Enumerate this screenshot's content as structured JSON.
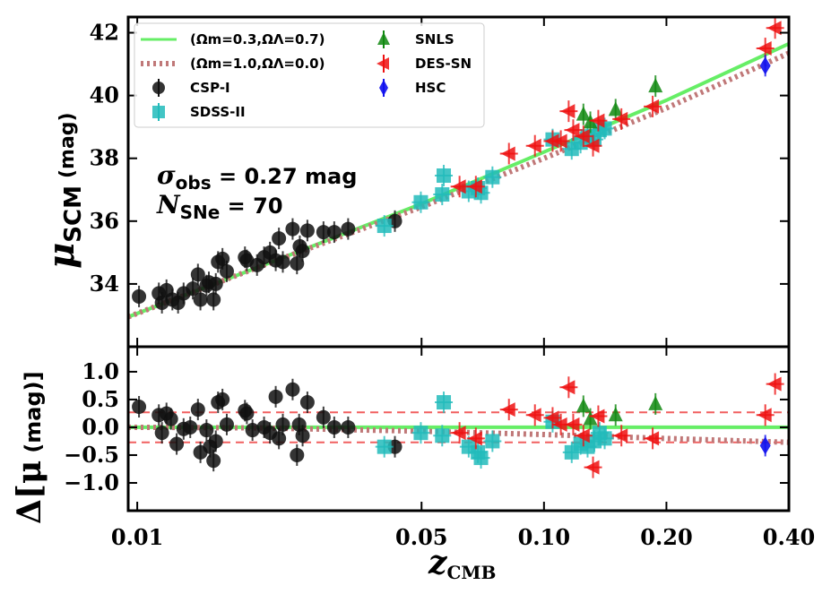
{
  "chart_data": [
    {
      "type": "scatter",
      "panel": "hubble-diagram",
      "xscale": "log",
      "xlim": [
        0.0095,
        0.4
      ],
      "ylim": [
        32.0,
        42.5
      ],
      "yticks": [
        34,
        36,
        38,
        40,
        42
      ],
      "ylabel_main": "μ",
      "ylabel_sub": "SCM",
      "ylabel_unit": "(mag)",
      "annotation": {
        "sigma_symbol": "σ",
        "sigma_sub": "obs",
        "sigma_value": " = 0.27 mag",
        "n_symbol": "N",
        "n_sub": "SNe",
        "n_value": " = 70"
      },
      "legend": {
        "position": "top-left",
        "entries": [
          {
            "label": "(Ωm=0.3,ΩΛ=0.7)",
            "kind": "line",
            "color": "#66ee66"
          },
          {
            "label": "(Ωm=1.0,ΩΛ=0.0)",
            "kind": "dotted",
            "color": "#c07878"
          },
          {
            "label": "CSP-I",
            "kind": "circle",
            "color": "#111111"
          },
          {
            "label": "SDSS-II",
            "kind": "square",
            "color": "#22bbbb"
          },
          {
            "label": "SNLS",
            "kind": "triangle-up",
            "color": "#118811"
          },
          {
            "label": "DES-SN",
            "kind": "triangle-left",
            "color": "#ee1111"
          },
          {
            "label": "HSC",
            "kind": "diamond",
            "color": "#1111ee"
          }
        ]
      },
      "models": [
        {
          "name": "(Ωm=0.3,ΩΛ=0.7)",
          "z": [
            0.0095,
            0.02,
            0.05,
            0.1,
            0.2,
            0.4
          ],
          "mu": [
            32.95,
            34.55,
            36.55,
            38.2,
            39.85,
            41.65
          ]
        },
        {
          "name": "(Ωm=1.0,ΩΛ=0.0)",
          "z": [
            0.0095,
            0.02,
            0.05,
            0.1,
            0.2,
            0.4
          ],
          "mu": [
            32.95,
            34.55,
            36.45,
            38.0,
            39.6,
            41.35
          ]
        }
      ],
      "series": [
        {
          "name": "CSP-I",
          "points": [
            [
              0.0101,
              33.6
            ],
            [
              0.0113,
              33.7
            ],
            [
              0.0115,
              33.4
            ],
            [
              0.0118,
              33.8
            ],
            [
              0.0122,
              33.5
            ],
            [
              0.0126,
              33.4
            ],
            [
              0.013,
              33.7
            ],
            [
              0.0137,
              33.85
            ],
            [
              0.0141,
              34.3
            ],
            [
              0.0143,
              33.5
            ],
            [
              0.0148,
              33.95
            ],
            [
              0.015,
              34.05
            ],
            [
              0.0154,
              33.5
            ],
            [
              0.0156,
              34.0
            ],
            [
              0.0158,
              34.7
            ],
            [
              0.0162,
              34.8
            ],
            [
              0.0166,
              34.4
            ],
            [
              0.0184,
              34.85
            ],
            [
              0.0186,
              34.75
            ],
            [
              0.0197,
              34.6
            ],
            [
              0.0205,
              34.85
            ],
            [
              0.0212,
              35.0
            ],
            [
              0.0219,
              34.75
            ],
            [
              0.0223,
              35.45
            ],
            [
              0.0228,
              34.7
            ],
            [
              0.0241,
              35.75
            ],
            [
              0.0247,
              34.65
            ],
            [
              0.0251,
              35.2
            ],
            [
              0.0255,
              35.05
            ],
            [
              0.0262,
              35.7
            ],
            [
              0.0287,
              35.65
            ],
            [
              0.0305,
              35.65
            ],
            [
              0.033,
              35.75
            ],
            [
              0.043,
              36.0
            ]
          ]
        },
        {
          "name": "SDSS-II",
          "points": [
            [
              0.0405,
              35.85
            ],
            [
              0.0498,
              36.6
            ],
            [
              0.0562,
              36.85
            ],
            [
              0.0567,
              37.45
            ],
            [
              0.0653,
              36.95
            ],
            [
              0.0688,
              37.05
            ],
            [
              0.07,
              36.9
            ],
            [
              0.0747,
              37.4
            ],
            [
              0.105,
              38.6
            ],
            [
              0.117,
              38.3
            ],
            [
              0.123,
              38.5
            ],
            [
              0.128,
              38.7
            ],
            [
              0.133,
              38.6
            ],
            [
              0.137,
              38.9
            ],
            [
              0.141,
              38.95
            ]
          ]
        },
        {
          "name": "SNLS",
          "points": [
            [
              0.125,
              39.4
            ],
            [
              0.13,
              39.15
            ],
            [
              0.15,
              39.55
            ],
            [
              0.188,
              40.3
            ]
          ]
        },
        {
          "name": "DES-SN",
          "points": [
            [
              0.062,
              37.1
            ],
            [
              0.068,
              37.1
            ],
            [
              0.082,
              38.15
            ],
            [
              0.095,
              38.4
            ],
            [
              0.105,
              38.55
            ],
            [
              0.11,
              38.55
            ],
            [
              0.115,
              39.5
            ],
            [
              0.118,
              38.9
            ],
            [
              0.125,
              38.7
            ],
            [
              0.132,
              38.4
            ],
            [
              0.136,
              39.2
            ],
            [
              0.155,
              39.25
            ],
            [
              0.185,
              39.65
            ],
            [
              0.35,
              41.5
            ],
            [
              0.37,
              42.15
            ]
          ]
        },
        {
          "name": "HSC",
          "points": [
            [
              0.35,
              40.95
            ]
          ]
        }
      ]
    },
    {
      "type": "scatter",
      "panel": "residuals",
      "xscale": "log",
      "xlim": [
        0.0095,
        0.4
      ],
      "ylim": [
        -1.5,
        1.45
      ],
      "yticks": [
        -1.0,
        -0.5,
        0.0,
        0.5,
        1.0
      ],
      "ytick_labels": [
        "−1.0",
        "−0.5",
        "0.0",
        "0.5",
        "1.0"
      ],
      "xticks": [
        0.01,
        0.05,
        0.1,
        0.2,
        0.4
      ],
      "xtick_labels": [
        "0.01",
        "0.05",
        "0.10",
        "0.20",
        "0.40"
      ],
      "xlabel_main": "z",
      "xlabel_sub": "CMB",
      "ylabel_main": "Δ[μ",
      "ylabel_unit": "(mag)]",
      "sigma_band": [
        -0.27,
        0.27
      ],
      "models": [
        {
          "name": "(Ωm=0.3,ΩΛ=0.7)",
          "z": [
            0.0095,
            0.4
          ],
          "res": [
            0.0,
            0.0
          ]
        },
        {
          "name": "(Ωm=1.0,ΩΛ=0.0)",
          "z": [
            0.0095,
            0.02,
            0.05,
            0.1,
            0.2,
            0.4
          ],
          "res": [
            0.0,
            -0.01,
            -0.07,
            -0.13,
            -0.2,
            -0.27
          ]
        }
      ],
      "series": [
        {
          "name": "CSP-I",
          "points": [
            [
              0.0101,
              0.37
            ],
            [
              0.0113,
              0.22
            ],
            [
              0.0115,
              -0.1
            ],
            [
              0.0118,
              0.25
            ],
            [
              0.0121,
              0.15
            ],
            [
              0.0125,
              -0.3
            ],
            [
              0.013,
              -0.03
            ],
            [
              0.0135,
              0.0
            ],
            [
              0.0141,
              0.32
            ],
            [
              0.0143,
              -0.45
            ],
            [
              0.0148,
              -0.05
            ],
            [
              0.0151,
              -0.35
            ],
            [
              0.0154,
              -0.6
            ],
            [
              0.0156,
              -0.25
            ],
            [
              0.0158,
              0.45
            ],
            [
              0.0162,
              0.5
            ],
            [
              0.0166,
              0.05
            ],
            [
              0.0184,
              0.3
            ],
            [
              0.0186,
              0.25
            ],
            [
              0.0192,
              -0.05
            ],
            [
              0.0205,
              0.0
            ],
            [
              0.0212,
              -0.1
            ],
            [
              0.0219,
              0.55
            ],
            [
              0.0223,
              -0.2
            ],
            [
              0.0228,
              0.05
            ],
            [
              0.0241,
              0.68
            ],
            [
              0.0247,
              -0.5
            ],
            [
              0.025,
              0.05
            ],
            [
              0.0255,
              -0.15
            ],
            [
              0.0262,
              0.45
            ],
            [
              0.0287,
              0.18
            ],
            [
              0.0305,
              0.0
            ],
            [
              0.033,
              0.0
            ],
            [
              0.043,
              -0.35
            ]
          ]
        },
        {
          "name": "SDSS-II",
          "points": [
            [
              0.0405,
              -0.35
            ],
            [
              0.0498,
              -0.1
            ],
            [
              0.0562,
              -0.15
            ],
            [
              0.0567,
              0.45
            ],
            [
              0.0653,
              -0.35
            ],
            [
              0.0688,
              -0.45
            ],
            [
              0.07,
              -0.55
            ],
            [
              0.0747,
              -0.25
            ],
            [
              0.105,
              0.1
            ],
            [
              0.117,
              -0.45
            ],
            [
              0.123,
              -0.3
            ],
            [
              0.128,
              -0.35
            ],
            [
              0.133,
              -0.25
            ],
            [
              0.137,
              -0.1
            ],
            [
              0.141,
              -0.2
            ]
          ]
        },
        {
          "name": "SNLS",
          "points": [
            [
              0.125,
              0.38
            ],
            [
              0.13,
              0.15
            ],
            [
              0.15,
              0.22
            ],
            [
              0.188,
              0.42
            ]
          ]
        },
        {
          "name": "DES-SN",
          "points": [
            [
              0.062,
              -0.1
            ],
            [
              0.068,
              -0.2
            ],
            [
              0.082,
              0.32
            ],
            [
              0.095,
              0.22
            ],
            [
              0.105,
              0.17
            ],
            [
              0.11,
              0.05
            ],
            [
              0.115,
              0.72
            ],
            [
              0.118,
              0.05
            ],
            [
              0.125,
              -0.15
            ],
            [
              0.132,
              -0.72
            ],
            [
              0.136,
              0.2
            ],
            [
              0.155,
              -0.15
            ],
            [
              0.185,
              -0.2
            ],
            [
              0.35,
              0.22
            ],
            [
              0.37,
              0.78
            ]
          ]
        },
        {
          "name": "HSC",
          "points": [
            [
              0.35,
              -0.33
            ]
          ]
        }
      ]
    }
  ]
}
